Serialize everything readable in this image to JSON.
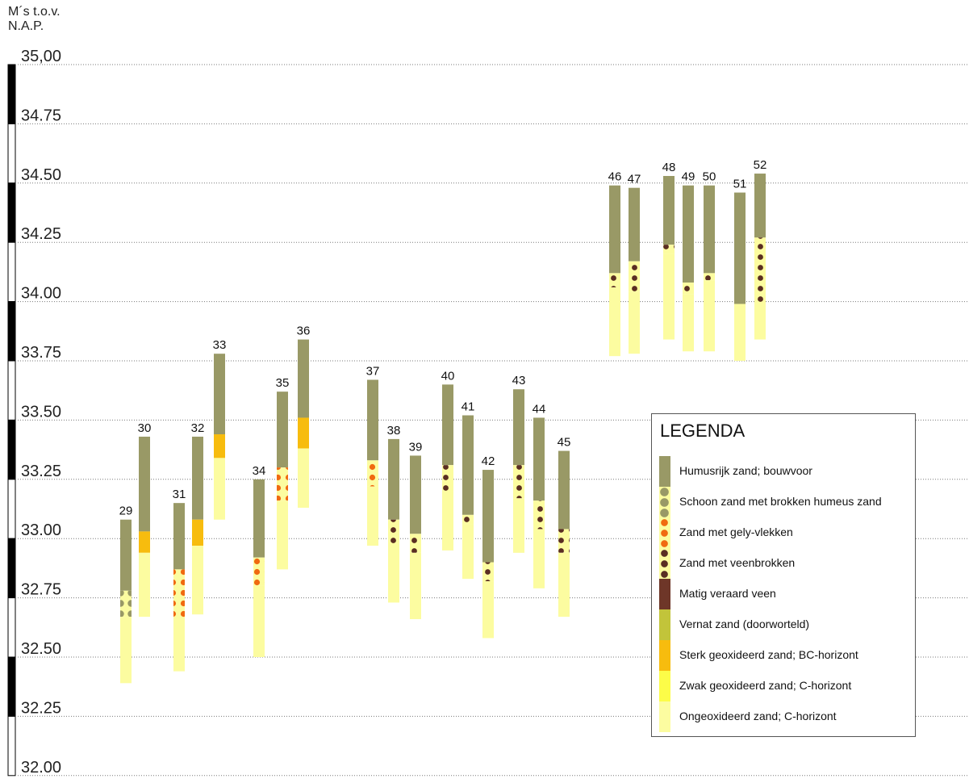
{
  "y_unit_label": [
    "M´s  t.o.v.",
    "N.A.P."
  ],
  "legend": {
    "title": "LEGENDA",
    "items": [
      {
        "key": "humus",
        "label": "Humusrijk zand; bouwvoor"
      },
      {
        "key": "schoon",
        "label": "Schoon zand met brokken humeus zand"
      },
      {
        "key": "gely",
        "label": "Zand met gely-vlekken"
      },
      {
        "key": "veenbrok",
        "label": "Zand met veenbrokken"
      },
      {
        "key": "veen",
        "label": "Matig veraard veen"
      },
      {
        "key": "vernat",
        "label": "Vernat zand (doorworteld)"
      },
      {
        "key": "sterk",
        "label": "Sterk geoxideerd zand; BC-horizont"
      },
      {
        "key": "zwak",
        "label": "Zwak geoxideerd zand; C-horizont"
      },
      {
        "key": "ongeox",
        "label": "Ongeoxideerd zand; C-horizont"
      }
    ]
  },
  "colors": {
    "humus": "#999966",
    "schoon_dot": "#999966",
    "gely_dot": "#f06a10",
    "veen_dot": "#5a2e22",
    "veen": "#6e3628",
    "vernat": "#c2c43a",
    "sterk": "#f7bc0e",
    "zwak": "#fcfc48",
    "ongeox": "#fcfca0",
    "pattern_bg": "#fcfca0"
  },
  "chart_data": {
    "type": "stacked-column-profile",
    "ylabel": "M´s  t.o.v. N.A.P.",
    "ylim": [
      32.0,
      35.0
    ],
    "yticks": [
      "35,00",
      "34.75",
      "34.50",
      "34.25",
      "34.00",
      "33.75",
      "33.50",
      "33.25",
      "33.00",
      "32.75",
      "32.50",
      "32.25",
      "32.00"
    ],
    "ytick_values": [
      35.0,
      34.75,
      34.5,
      34.25,
      34.0,
      33.75,
      33.5,
      33.25,
      33.0,
      32.75,
      32.5,
      32.25,
      32.0
    ],
    "columns": [
      {
        "label": "29",
        "layers": [
          {
            "type": "humus",
            "top": 33.08,
            "bottom": 32.78
          },
          {
            "type": "schoon",
            "top": 32.78,
            "bottom": 32.67
          },
          {
            "type": "ongeox",
            "top": 32.67,
            "bottom": 32.39
          }
        ]
      },
      {
        "label": "30",
        "layers": [
          {
            "type": "humus",
            "top": 33.43,
            "bottom": 33.03
          },
          {
            "type": "sterk",
            "top": 33.03,
            "bottom": 32.94
          },
          {
            "type": "ongeox",
            "top": 32.94,
            "bottom": 32.67
          }
        ]
      },
      {
        "label": "31",
        "layers": [
          {
            "type": "humus",
            "top": 33.15,
            "bottom": 32.87
          },
          {
            "type": "gely",
            "top": 32.87,
            "bottom": 32.66
          },
          {
            "type": "ongeox",
            "top": 32.66,
            "bottom": 32.44
          }
        ]
      },
      {
        "label": "32",
        "layers": [
          {
            "type": "humus",
            "top": 33.43,
            "bottom": 33.08
          },
          {
            "type": "sterk",
            "top": 33.08,
            "bottom": 32.97
          },
          {
            "type": "ongeox",
            "top": 32.97,
            "bottom": 32.68
          }
        ]
      },
      {
        "label": "33",
        "layers": [
          {
            "type": "humus",
            "top": 33.78,
            "bottom": 33.44
          },
          {
            "type": "sterk",
            "top": 33.44,
            "bottom": 33.34
          },
          {
            "type": "ongeox",
            "top": 33.34,
            "bottom": 33.08
          }
        ]
      },
      {
        "label": "34",
        "layers": [
          {
            "type": "humus",
            "top": 33.25,
            "bottom": 32.92
          },
          {
            "type": "gely",
            "top": 32.92,
            "bottom": 32.8
          },
          {
            "type": "ongeox",
            "top": 32.8,
            "bottom": 32.5
          }
        ]
      },
      {
        "label": "35",
        "layers": [
          {
            "type": "humus",
            "top": 33.62,
            "bottom": 33.3
          },
          {
            "type": "gely",
            "top": 33.3,
            "bottom": 33.16
          },
          {
            "type": "ongeox",
            "top": 33.16,
            "bottom": 32.87
          }
        ]
      },
      {
        "label": "36",
        "layers": [
          {
            "type": "humus",
            "top": 33.84,
            "bottom": 33.51
          },
          {
            "type": "sterk",
            "top": 33.51,
            "bottom": 33.38
          },
          {
            "type": "ongeox",
            "top": 33.38,
            "bottom": 33.13
          }
        ]
      },
      {
        "label": "37",
        "layers": [
          {
            "type": "humus",
            "top": 33.67,
            "bottom": 33.33
          },
          {
            "type": "gely",
            "top": 33.33,
            "bottom": 33.22
          },
          {
            "type": "ongeox",
            "top": 33.22,
            "bottom": 32.97
          }
        ]
      },
      {
        "label": "38",
        "layers": [
          {
            "type": "humus",
            "top": 33.42,
            "bottom": 33.08
          },
          {
            "type": "veenbrok",
            "top": 33.08,
            "bottom": 32.97
          },
          {
            "type": "ongeox",
            "top": 32.97,
            "bottom": 32.73
          }
        ]
      },
      {
        "label": "39",
        "layers": [
          {
            "type": "humus",
            "top": 33.35,
            "bottom": 33.02
          },
          {
            "type": "veenbrok",
            "top": 33.02,
            "bottom": 32.94
          },
          {
            "type": "ongeox",
            "top": 32.94,
            "bottom": 32.66
          }
        ]
      },
      {
        "label": "40",
        "layers": [
          {
            "type": "humus",
            "top": 33.65,
            "bottom": 33.31
          },
          {
            "type": "veenbrok",
            "top": 33.31,
            "bottom": 33.2
          },
          {
            "type": "ongeox",
            "top": 33.2,
            "bottom": 32.95
          }
        ]
      },
      {
        "label": "41",
        "layers": [
          {
            "type": "humus",
            "top": 33.52,
            "bottom": 33.1
          },
          {
            "type": "veenbrok",
            "top": 33.1,
            "bottom": 33.06
          },
          {
            "type": "ongeox",
            "top": 33.06,
            "bottom": 32.83
          }
        ]
      },
      {
        "label": "42",
        "layers": [
          {
            "type": "humus",
            "top": 33.29,
            "bottom": 32.9
          },
          {
            "type": "veenbrok",
            "top": 32.9,
            "bottom": 32.82
          },
          {
            "type": "ongeox",
            "top": 32.82,
            "bottom": 32.58
          }
        ]
      },
      {
        "label": "43",
        "layers": [
          {
            "type": "humus",
            "top": 33.63,
            "bottom": 33.31
          },
          {
            "type": "veenbrok",
            "top": 33.31,
            "bottom": 33.17
          },
          {
            "type": "ongeox",
            "top": 33.17,
            "bottom": 32.94
          }
        ]
      },
      {
        "label": "44",
        "layers": [
          {
            "type": "humus",
            "top": 33.51,
            "bottom": 33.16
          },
          {
            "type": "veenbrok",
            "top": 33.16,
            "bottom": 33.04
          },
          {
            "type": "ongeox",
            "top": 33.04,
            "bottom": 32.79
          }
        ]
      },
      {
        "label": "45",
        "layers": [
          {
            "type": "humus",
            "top": 33.37,
            "bottom": 33.04
          },
          {
            "type": "veenbrok",
            "top": 33.04,
            "bottom": 32.94
          },
          {
            "type": "ongeox",
            "top": 32.94,
            "bottom": 32.67
          }
        ]
      },
      {
        "label": "46",
        "layers": [
          {
            "type": "humus",
            "top": 34.49,
            "bottom": 34.12
          },
          {
            "type": "veenbrok",
            "top": 34.12,
            "bottom": 34.06
          },
          {
            "type": "ongeox",
            "top": 34.06,
            "bottom": 33.77
          }
        ]
      },
      {
        "label": "47",
        "layers": [
          {
            "type": "humus",
            "top": 34.48,
            "bottom": 34.17
          },
          {
            "type": "veenbrok",
            "top": 34.17,
            "bottom": 34.04
          },
          {
            "type": "ongeox",
            "top": 34.04,
            "bottom": 33.78
          }
        ]
      },
      {
        "label": "48",
        "layers": [
          {
            "type": "humus",
            "top": 34.53,
            "bottom": 34.24
          },
          {
            "type": "veenbrok",
            "top": 34.24,
            "bottom": 34.2
          },
          {
            "type": "ongeox",
            "top": 34.2,
            "bottom": 33.84
          }
        ]
      },
      {
        "label": "49",
        "layers": [
          {
            "type": "humus",
            "top": 34.49,
            "bottom": 34.08
          },
          {
            "type": "veenbrok",
            "top": 34.08,
            "bottom": 34.03
          },
          {
            "type": "ongeox",
            "top": 34.03,
            "bottom": 33.79
          }
        ]
      },
      {
        "label": "50",
        "layers": [
          {
            "type": "humus",
            "top": 34.49,
            "bottom": 34.12
          },
          {
            "type": "veenbrok",
            "top": 34.12,
            "bottom": 34.09
          },
          {
            "type": "ongeox",
            "top": 34.09,
            "bottom": 33.79
          }
        ]
      },
      {
        "label": "51",
        "layers": [
          {
            "type": "humus",
            "top": 34.46,
            "bottom": 33.99
          },
          {
            "type": "ongeox",
            "top": 33.99,
            "bottom": 33.75
          }
        ]
      },
      {
        "label": "52",
        "layers": [
          {
            "type": "humus",
            "top": 34.54,
            "bottom": 34.27
          },
          {
            "type": "veenbrok",
            "top": 34.27,
            "bottom": 33.99
          },
          {
            "type": "ongeox",
            "top": 33.99,
            "bottom": 33.84
          }
        ]
      }
    ]
  }
}
